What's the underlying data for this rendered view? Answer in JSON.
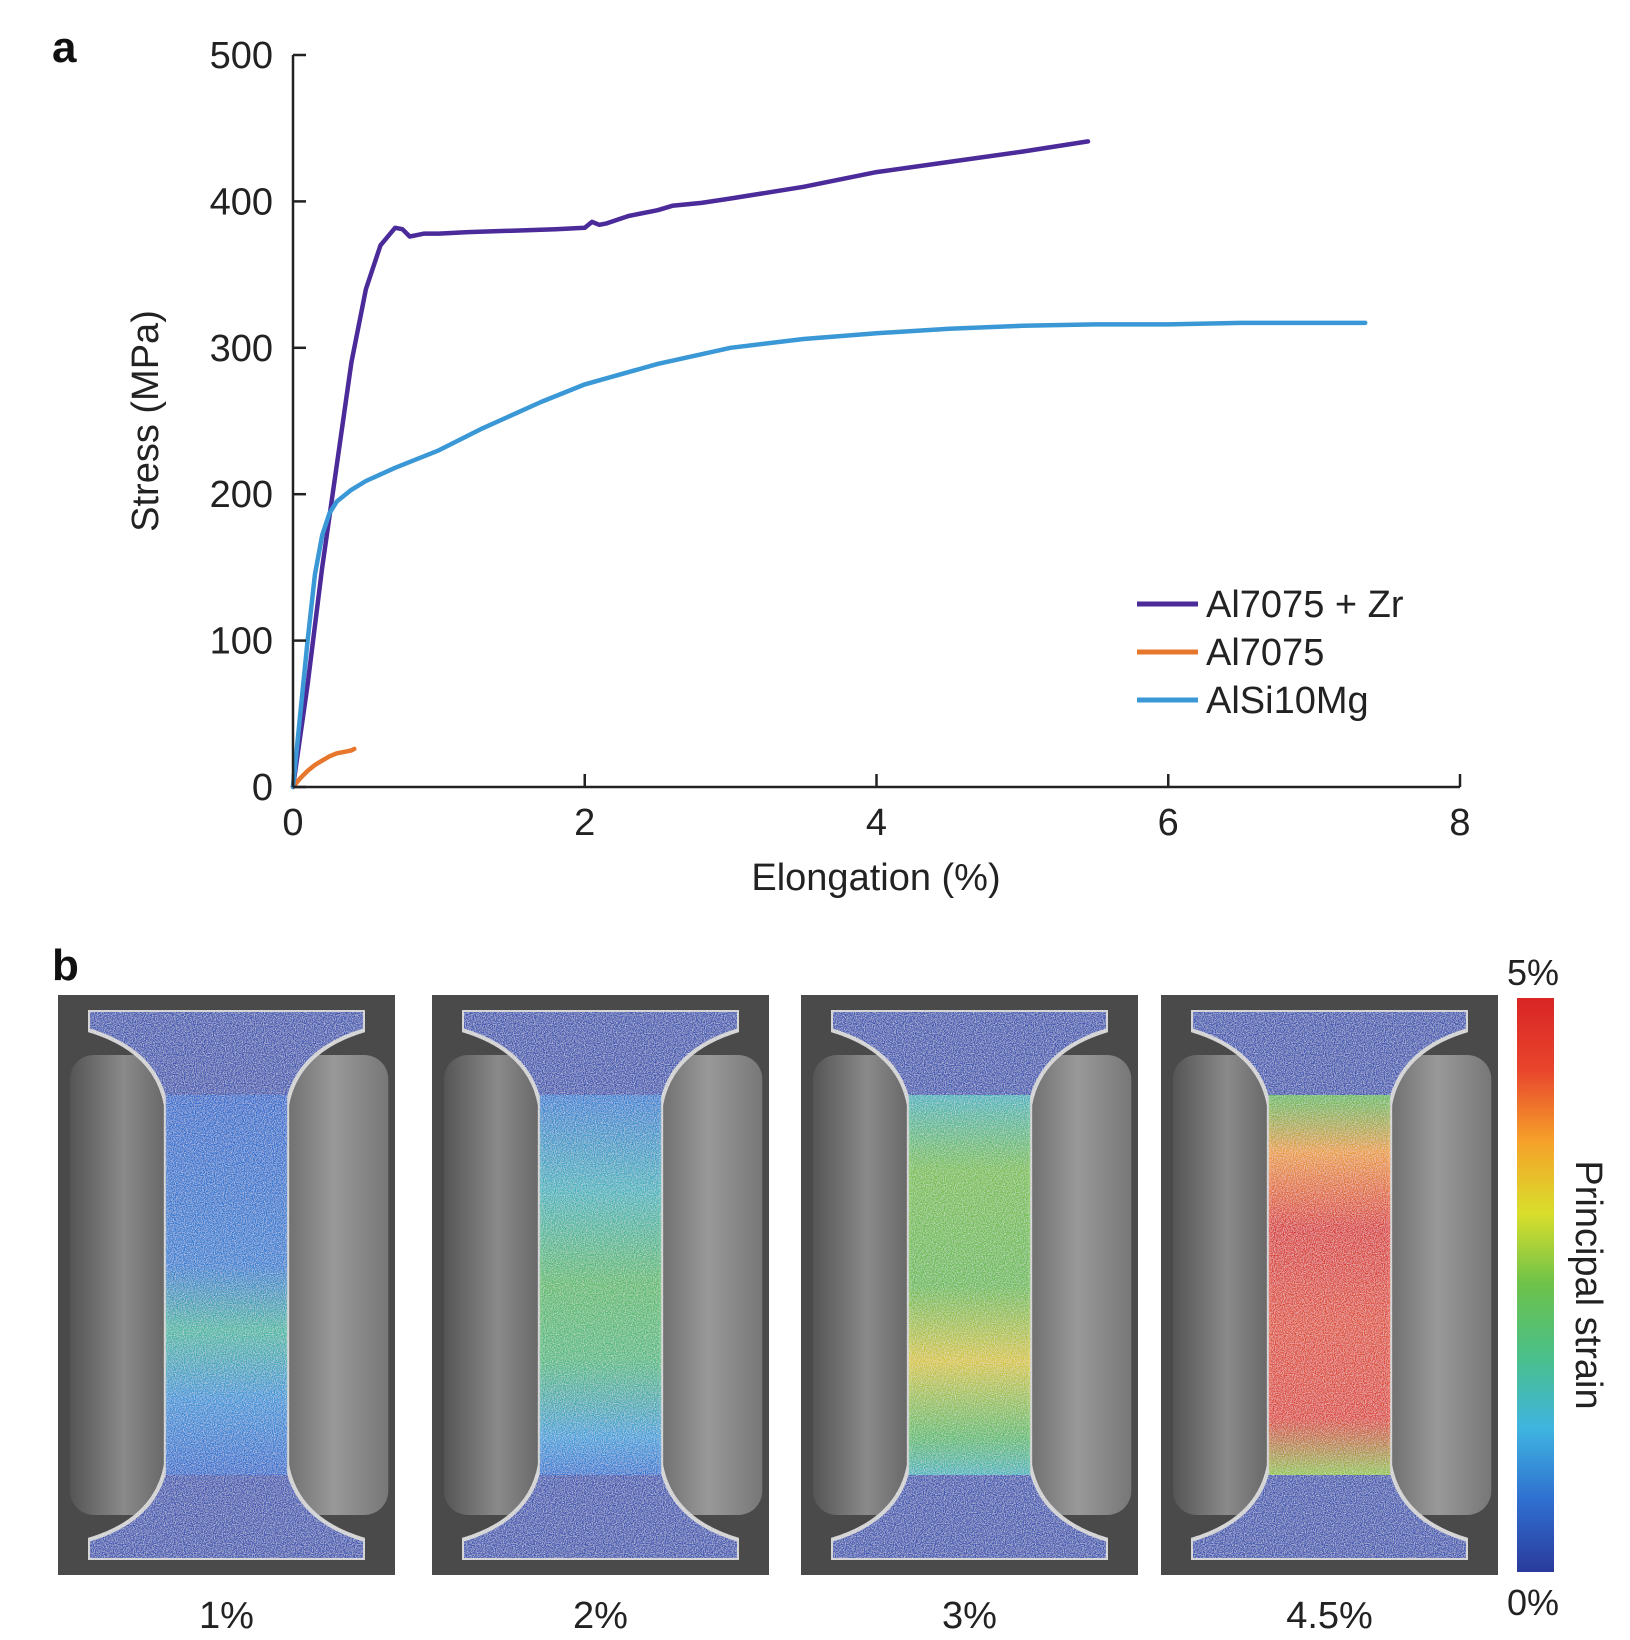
{
  "panel_a": {
    "letter": "a"
  },
  "panel_b": {
    "letter": "b",
    "specimens": [
      {
        "label": "1%",
        "strain_pct": 1
      },
      {
        "label": "2%",
        "strain_pct": 2
      },
      {
        "label": "3%",
        "strain_pct": 3
      },
      {
        "label": "4.5%",
        "strain_pct": 4.5
      }
    ],
    "colorbar": {
      "title": "Principal strain",
      "max_label": "5%",
      "min_label": "0%",
      "colors": [
        "#2a3b9c",
        "#2f6fd0",
        "#3fb4e0",
        "#4ac08a",
        "#6cc24a",
        "#d9de2b",
        "#f6a12a",
        "#e8452c",
        "#d92525"
      ]
    }
  },
  "chart_data": {
    "type": "line",
    "title": "",
    "xlabel": "Elongation (%)",
    "ylabel": "Stress (MPa)",
    "xlim": [
      0,
      8
    ],
    "ylim": [
      0,
      500
    ],
    "xticks": [
      0,
      2,
      4,
      6,
      8
    ],
    "yticks": [
      0,
      100,
      200,
      300,
      400,
      500
    ],
    "grid": false,
    "legend_position": "lower-right",
    "series": [
      {
        "name": "Al7075 + Zr",
        "color": "#4b2a9a",
        "x": [
          0,
          0.1,
          0.2,
          0.3,
          0.4,
          0.5,
          0.6,
          0.7,
          0.75,
          0.8,
          0.85,
          0.9,
          1.0,
          1.2,
          1.5,
          1.8,
          2.0,
          2.05,
          2.1,
          2.15,
          2.3,
          2.5,
          2.6,
          2.8,
          3.0,
          3.5,
          4.0,
          4.5,
          5.0,
          5.45
        ],
        "y": [
          0,
          70,
          150,
          220,
          290,
          340,
          370,
          382,
          381,
          376,
          377,
          378,
          378,
          379,
          380,
          381,
          382,
          386,
          384,
          385,
          390,
          394,
          397,
          399,
          402,
          410,
          420,
          427,
          434,
          441
        ]
      },
      {
        "name": "Al7075",
        "color": "#e8772e",
        "x": [
          0,
          0.05,
          0.1,
          0.15,
          0.2,
          0.25,
          0.3,
          0.35,
          0.4,
          0.42
        ],
        "y": [
          0,
          6,
          11,
          15,
          18,
          21,
          23,
          24,
          25,
          26
        ]
      },
      {
        "name": "AlSi10Mg",
        "color": "#3a98d6",
        "x": [
          0,
          0.05,
          0.1,
          0.15,
          0.2,
          0.25,
          0.3,
          0.4,
          0.5,
          0.7,
          1.0,
          1.3,
          1.7,
          2.0,
          2.5,
          3.0,
          3.5,
          4.0,
          4.5,
          5.0,
          5.5,
          6.0,
          6.5,
          7.0,
          7.35
        ],
        "y": [
          0,
          50,
          100,
          145,
          172,
          187,
          195,
          203,
          209,
          218,
          230,
          245,
          263,
          275,
          289,
          300,
          306,
          310,
          313,
          315,
          316,
          316,
          317,
          317,
          317
        ]
      }
    ]
  }
}
